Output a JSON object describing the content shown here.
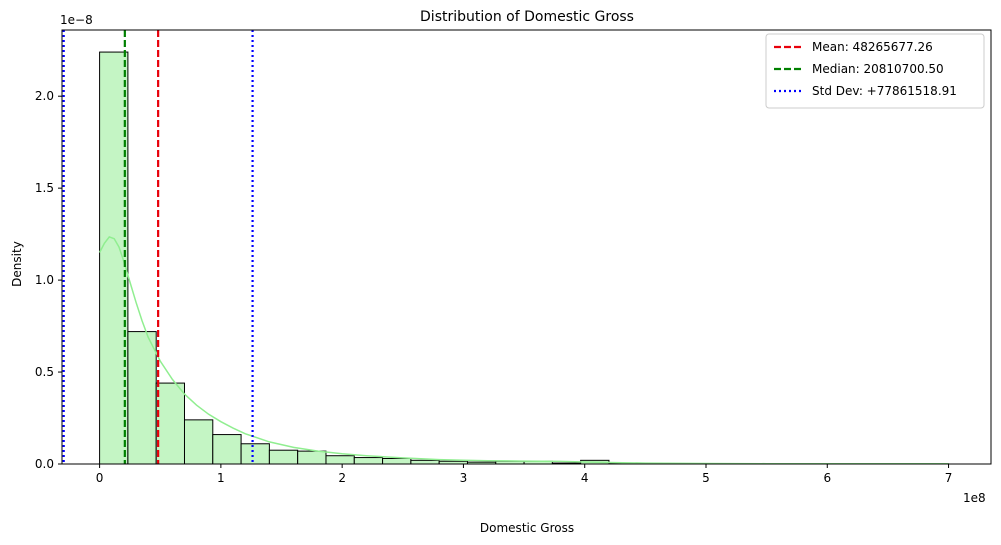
{
  "chart_data": {
    "type": "histogram",
    "title": "Distribution of Domestic Gross",
    "xlabel": "Domestic Gross",
    "ylabel": "Density",
    "x_offset_label": "1e8",
    "y_offset_label": "1e−8",
    "xlim": [
      -31000000,
      735000000
    ],
    "ylim": [
      0,
      2.36e-08
    ],
    "x_ticks": [
      {
        "value": 0,
        "label": "0"
      },
      {
        "value": 100000000,
        "label": "1"
      },
      {
        "value": 200000000,
        "label": "2"
      },
      {
        "value": 300000000,
        "label": "3"
      },
      {
        "value": 400000000,
        "label": "4"
      },
      {
        "value": 500000000,
        "label": "5"
      },
      {
        "value": 600000000,
        "label": "6"
      },
      {
        "value": 700000000,
        "label": "7"
      }
    ],
    "y_ticks": [
      {
        "value": 0,
        "label": "0.0"
      },
      {
        "value": 5e-09,
        "label": "0.5"
      },
      {
        "value": 1e-08,
        "label": "1.0"
      },
      {
        "value": 1.5e-08,
        "label": "1.5"
      },
      {
        "value": 2e-08,
        "label": "2.0"
      }
    ],
    "bin_width": 23333333,
    "bins": [
      {
        "x0": 0,
        "density": 2.24e-08
      },
      {
        "x0": 23333333,
        "density": 7.2e-09
      },
      {
        "x0": 46666667,
        "density": 4.4e-09
      },
      {
        "x0": 70000000,
        "density": 2.4e-09
      },
      {
        "x0": 93333333,
        "density": 1.6e-09
      },
      {
        "x0": 116666667,
        "density": 1.1e-09
      },
      {
        "x0": 140000000,
        "density": 7.5e-10
      },
      {
        "x0": 163333333,
        "density": 7e-10
      },
      {
        "x0": 186666667,
        "density": 4.5e-10
      },
      {
        "x0": 210000000,
        "density": 3.5e-10
      },
      {
        "x0": 233333333,
        "density": 3e-10
      },
      {
        "x0": 256666667,
        "density": 2e-10
      },
      {
        "x0": 280000000,
        "density": 1.5e-10
      },
      {
        "x0": 303333333,
        "density": 1e-10
      },
      {
        "x0": 326666667,
        "density": 1.5e-10
      },
      {
        "x0": 350000000,
        "density": 1.5e-10
      },
      {
        "x0": 373333333,
        "density": 5e-11
      },
      {
        "x0": 396666667,
        "density": 2e-10
      },
      {
        "x0": 420000000,
        "density": 5e-11
      },
      {
        "x0": 443333333,
        "density": 2e-11
      },
      {
        "x0": 466666667,
        "density": 1e-11
      },
      {
        "x0": 490000000,
        "density": 1e-11
      },
      {
        "x0": 513333333,
        "density": 1e-11
      },
      {
        "x0": 536666667,
        "density": 1e-11
      },
      {
        "x0": 560000000,
        "density": 1e-11
      },
      {
        "x0": 583333333,
        "density": 1e-11
      },
      {
        "x0": 606666667,
        "density": 1e-11
      },
      {
        "x0": 630000000,
        "density": 1e-11
      },
      {
        "x0": 653333333,
        "density": 1e-11
      },
      {
        "x0": 676666667,
        "density": 1e-11
      }
    ],
    "kde": {
      "x": [
        0,
        4000000,
        8000000,
        12000000,
        16000000,
        20000000,
        25000000,
        30000000,
        35000000,
        40000000,
        50000000,
        60000000,
        70000000,
        80000000,
        90000000,
        100000000,
        110000000,
        120000000,
        140000000,
        160000000,
        180000000,
        200000000,
        220000000,
        250000000,
        280000000,
        300000000,
        320000000,
        350000000,
        380000000,
        400000000,
        420000000,
        450000000,
        500000000,
        550000000,
        600000000,
        650000000,
        700000000
      ],
      "y": [
        1.15e-08,
        1.2e-08,
        1.235e-08,
        1.225e-08,
        1.18e-08,
        1.1e-08,
        9.9e-09,
        8.8e-09,
        7.8e-09,
        6.9e-09,
        5.6e-09,
        4.6e-09,
        3.8e-09,
        3.2e-09,
        2.7e-09,
        2.3e-09,
        1.95e-09,
        1.65e-09,
        1.2e-09,
        9e-10,
        7e-10,
        5.6e-10,
        4.5e-10,
        3.3e-10,
        2.4e-10,
        2e-10,
        1.8e-10,
        1.6e-10,
        1.4e-10,
        1.1e-10,
        8e-11,
        5e-11,
        2.5e-11,
        1.5e-11,
        1e-11,
        1.5e-11,
        1e-11
      ]
    },
    "vlines": [
      {
        "name": "mean-line",
        "x": 48265677.26,
        "color": "#e8000b",
        "style": "dashed"
      },
      {
        "name": "median-line",
        "x": 20810700.5,
        "color": "#008000",
        "style": "dashed"
      },
      {
        "name": "std-upper-line",
        "x": 126127196.17,
        "color": "#0000ff",
        "style": "dotted"
      },
      {
        "name": "std-lower-line",
        "x": -29595841.65,
        "color": "#0000ff",
        "style": "dotted"
      }
    ],
    "legend": {
      "placement": "top-right",
      "entries": [
        {
          "label": "Mean: 48265677.26",
          "color": "#e8000b",
          "style": "dashed"
        },
        {
          "label": "Median: 20810700.50",
          "color": "#008000",
          "style": "dashed"
        },
        {
          "label": "Std Dev: +77861518.91",
          "color": "#0000ff",
          "style": "dotted"
        }
      ]
    },
    "colors": {
      "bar_fill": "#c4f5c4",
      "bar_edge": "#000000",
      "kde_line": "#90ee90"
    }
  }
}
